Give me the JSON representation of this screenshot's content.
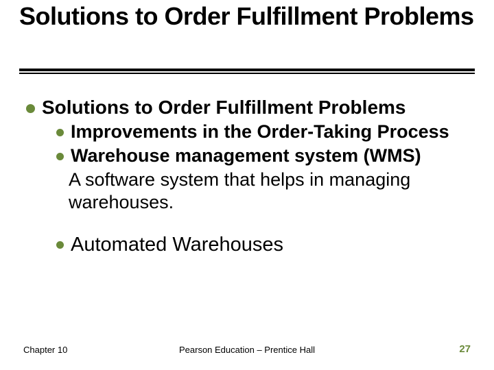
{
  "colors": {
    "bullet": "#6a8a3a",
    "underline": "#000000",
    "text": "#000000",
    "page_number": "#6a8a3a",
    "background": "#ffffff"
  },
  "typography": {
    "title_fontsize_pt": 36,
    "title_weight": "bold",
    "body_fontsize_pt": 27,
    "footer_fontsize_pt": 13
  },
  "title": "Solutions to Order Fulfillment Problems",
  "list": {
    "heading": "Solutions to Order Fulfillment Problems",
    "items": [
      {
        "label": "Improvements in the Order-Taking Process"
      },
      {
        "label": "Warehouse management system (WMS)",
        "desc": "A software system that helps in managing warehouses."
      },
      {
        "label": "Automated Warehouses",
        "spaced": true
      }
    ]
  },
  "footer": {
    "left": "Chapter 10",
    "center": "Pearson Education – Prentice Hall",
    "page": "27"
  }
}
